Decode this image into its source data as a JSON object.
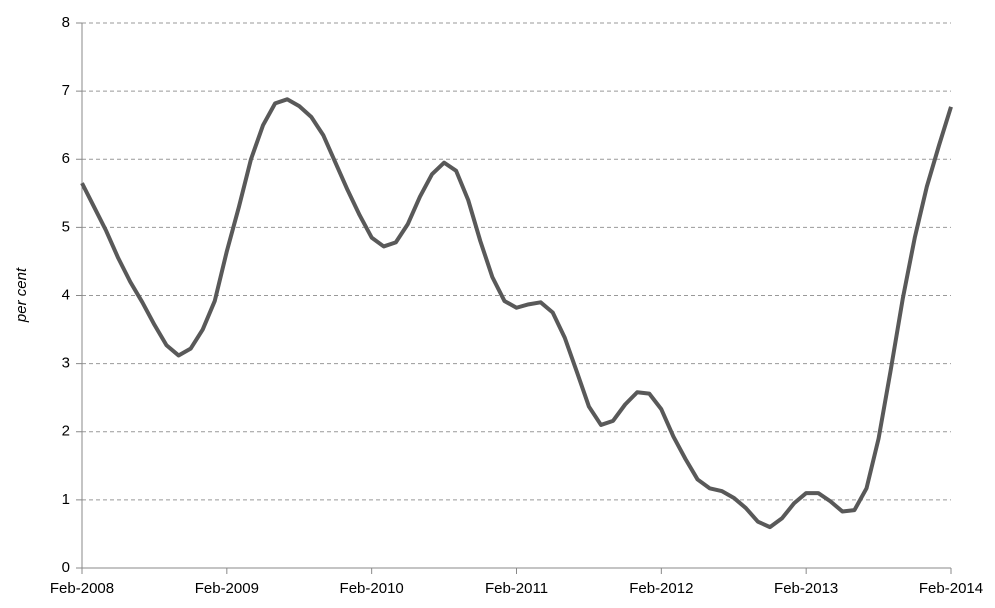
{
  "chart_data": {
    "type": "line",
    "y_label": "per cent",
    "categories": [
      "Feb-2008",
      null,
      null,
      null,
      null,
      null,
      null,
      null,
      null,
      null,
      null,
      null,
      "Feb-2009",
      null,
      null,
      null,
      null,
      null,
      null,
      null,
      null,
      null,
      null,
      null,
      "Feb-2010",
      null,
      null,
      null,
      null,
      null,
      null,
      null,
      null,
      null,
      null,
      null,
      "Feb-2011",
      null,
      null,
      null,
      null,
      null,
      null,
      null,
      null,
      null,
      null,
      null,
      "Feb-2012",
      null,
      null,
      null,
      null,
      null,
      null,
      null,
      null,
      null,
      null,
      null,
      "Feb-2013",
      null,
      null,
      null,
      null,
      null,
      null,
      null,
      null,
      null,
      null,
      null,
      "Feb-2014"
    ],
    "values": [
      5.65,
      5.3,
      4.95,
      4.55,
      4.2,
      3.9,
      3.57,
      3.27,
      3.12,
      3.22,
      3.5,
      3.92,
      4.65,
      5.3,
      6.0,
      6.5,
      6.82,
      6.88,
      6.78,
      6.62,
      6.35,
      5.95,
      5.55,
      5.18,
      4.85,
      4.72,
      4.78,
      5.05,
      5.45,
      5.78,
      5.95,
      5.83,
      5.4,
      4.8,
      4.27,
      3.92,
      3.82,
      3.87,
      3.9,
      3.75,
      3.38,
      2.88,
      2.37,
      2.1,
      2.16,
      2.4,
      2.58,
      2.56,
      2.33,
      1.93,
      1.6,
      1.3,
      1.17,
      1.13,
      1.03,
      0.88,
      0.68,
      0.6,
      0.73,
      0.95,
      1.1,
      1.1,
      0.98,
      0.83,
      0.85,
      1.17,
      1.9,
      2.9,
      3.95,
      4.85,
      5.6,
      6.2,
      6.77
    ],
    "color": "#595959",
    "ylim": [
      0,
      8
    ],
    "yticks": [
      0,
      1,
      2,
      3,
      4,
      5,
      6,
      7,
      8
    ],
    "grid": true
  }
}
